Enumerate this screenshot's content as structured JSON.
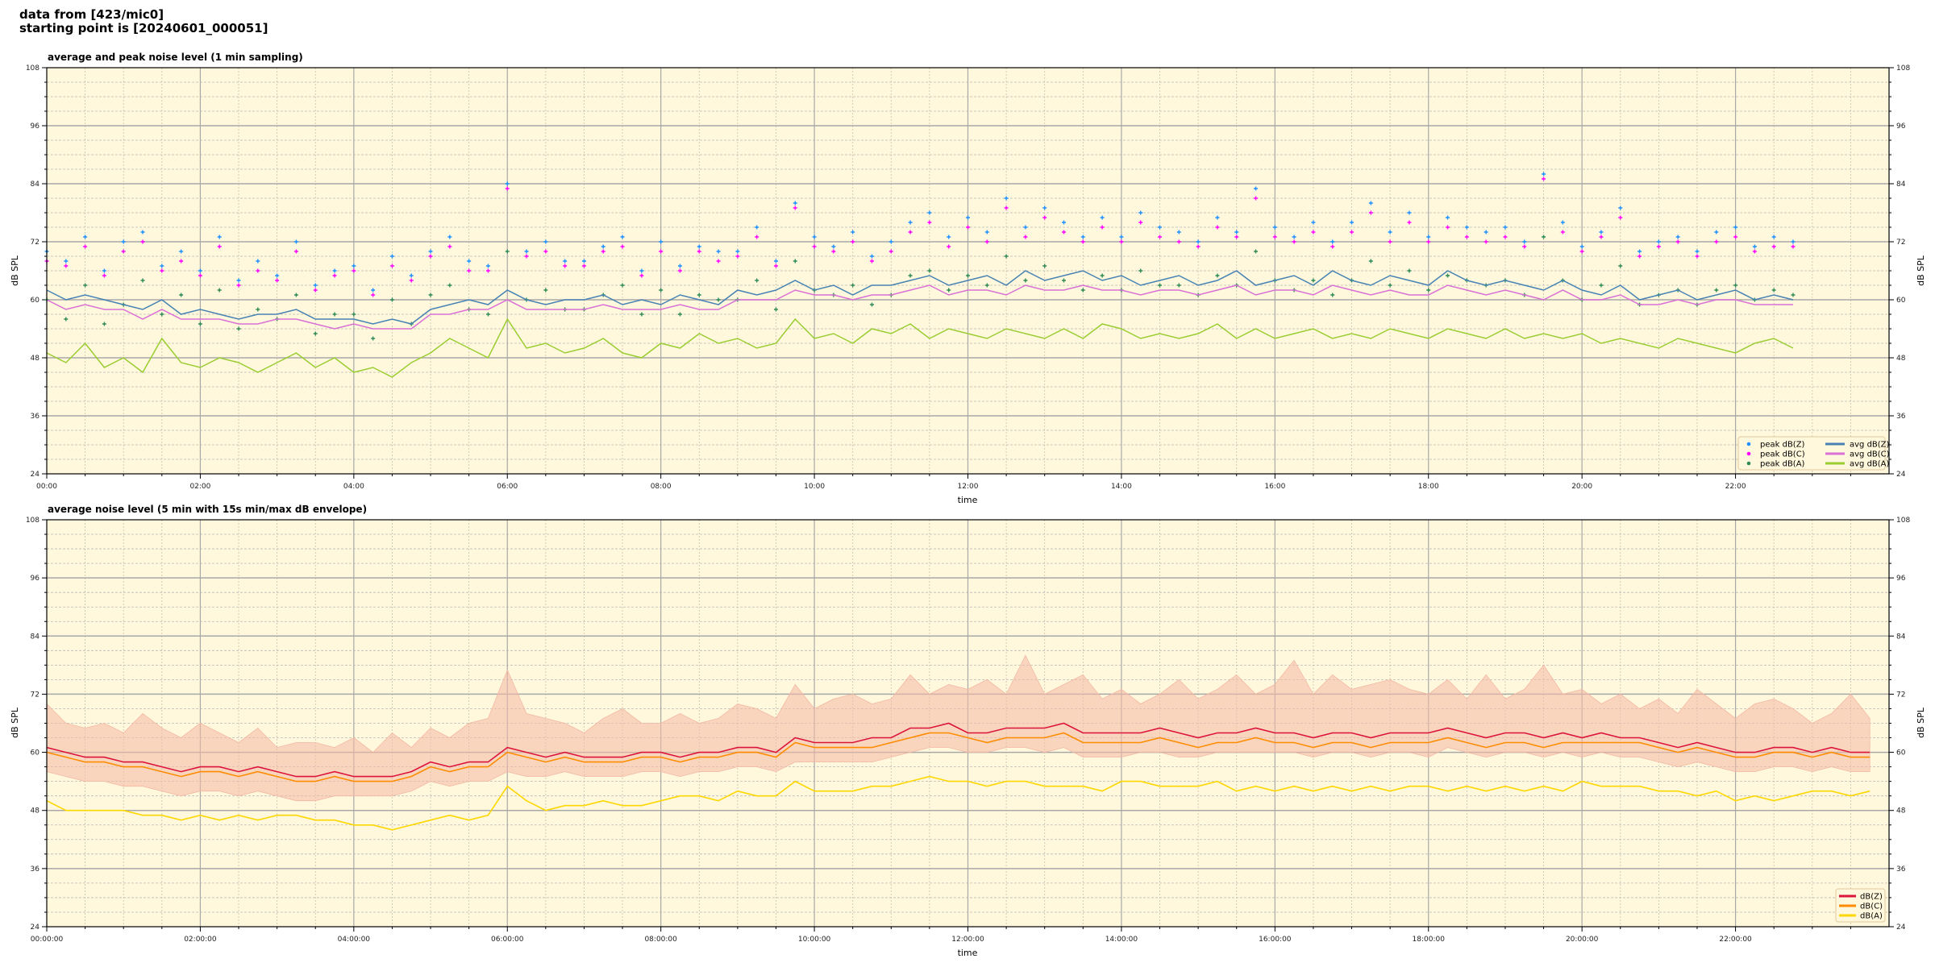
{
  "header": {
    "line1": "data from [423/mic0]",
    "line2": "starting point is [20240601_000051]"
  },
  "colors": {
    "plot_background": "#fff8dc",
    "avg_z": "#4682b4",
    "avg_c": "#da70d6",
    "avg_a": "#9acd32",
    "peak_z": "#1e90ff",
    "peak_c": "#ff00ff",
    "peak_a": "#2e8b57",
    "db_z": "#dc143c",
    "db_c": "#ff8c00",
    "db_a": "#ffd700",
    "envelope": "#f4b8a4"
  },
  "chart_data": [
    {
      "type": "line",
      "title": "average and peak noise level (1 min sampling)",
      "xlabel": "time",
      "ylabel": "dB SPL",
      "ylim": [
        24,
        108
      ],
      "yticks": [
        "24",
        "36",
        "48",
        "60",
        "72",
        "84",
        "96",
        "108"
      ],
      "xticks": [
        "00:00",
        "02:00",
        "04:00",
        "06:00",
        "08:00",
        "10:00",
        "12:00",
        "14:00",
        "16:00",
        "18:00",
        "20:00",
        "22:00"
      ],
      "grid": true,
      "legend": "lower-right",
      "legend_entries": [
        "peak dB(Z)",
        "peak dB(C)",
        "peak dB(A)",
        "avg dB(Z)",
        "avg dB(C)",
        "avg dB(A)"
      ],
      "series": [
        {
          "name": "peak dB(Z)",
          "kind": "scatter",
          "values": [
            70,
            68,
            73,
            66,
            72,
            74,
            67,
            70,
            66,
            73,
            64,
            68,
            65,
            72,
            63,
            66,
            67,
            62,
            69,
            65,
            70,
            73,
            68,
            67,
            84,
            70,
            72,
            68,
            68,
            71,
            73,
            66,
            72,
            67,
            71,
            70,
            70,
            75,
            68,
            80,
            73,
            71,
            74,
            69,
            72,
            76,
            78,
            73,
            77,
            74,
            81,
            75,
            79,
            76,
            73,
            77,
            73,
            78,
            75,
            74,
            72,
            77,
            74,
            83,
            75,
            73,
            76,
            72,
            76,
            80,
            74,
            78,
            73,
            77,
            75,
            74,
            75,
            72,
            86,
            76,
            71,
            74,
            79,
            70,
            72,
            73,
            70,
            74,
            75,
            71,
            73,
            72
          ]
        },
        {
          "name": "peak dB(C)",
          "kind": "scatter",
          "values": [
            68,
            67,
            71,
            65,
            70,
            72,
            66,
            68,
            65,
            71,
            63,
            66,
            64,
            70,
            62,
            65,
            66,
            61,
            67,
            64,
            69,
            71,
            66,
            66,
            83,
            69,
            70,
            67,
            67,
            70,
            71,
            65,
            70,
            66,
            70,
            68,
            69,
            73,
            67,
            79,
            71,
            70,
            72,
            68,
            70,
            74,
            76,
            71,
            75,
            72,
            79,
            73,
            77,
            74,
            72,
            75,
            72,
            76,
            73,
            72,
            71,
            75,
            73,
            81,
            73,
            72,
            74,
            71,
            74,
            78,
            72,
            76,
            72,
            75,
            73,
            72,
            73,
            71,
            85,
            74,
            70,
            73,
            77,
            69,
            71,
            72,
            69,
            72,
            73,
            70,
            71,
            71
          ]
        },
        {
          "name": "peak dB(A)",
          "kind": "scatter",
          "values": [
            60,
            56,
            63,
            55,
            59,
            64,
            57,
            61,
            55,
            62,
            54,
            58,
            56,
            61,
            53,
            57,
            57,
            52,
            60,
            55,
            61,
            63,
            58,
            57,
            70,
            60,
            62,
            58,
            58,
            61,
            63,
            57,
            62,
            57,
            61,
            60,
            60,
            64,
            58,
            68,
            62,
            61,
            63,
            59,
            61,
            65,
            66,
            62,
            65,
            63,
            69,
            64,
            67,
            64,
            62,
            65,
            62,
            66,
            63,
            63,
            61,
            65,
            63,
            70,
            64,
            62,
            64,
            61,
            64,
            68,
            63,
            66,
            62,
            65,
            64,
            63,
            64,
            61,
            73,
            64,
            60,
            63,
            67,
            59,
            61,
            62,
            59,
            62,
            63,
            60,
            62,
            61
          ]
        },
        {
          "name": "avg dB(Z)",
          "kind": "line",
          "values": [
            62,
            60,
            61,
            60,
            59,
            58,
            60,
            57,
            58,
            57,
            56,
            57,
            57,
            58,
            56,
            56,
            56,
            55,
            56,
            55,
            58,
            59,
            60,
            59,
            62,
            60,
            59,
            60,
            60,
            61,
            59,
            60,
            59,
            61,
            60,
            59,
            62,
            61,
            62,
            64,
            62,
            63,
            61,
            63,
            63,
            64,
            65,
            63,
            64,
            65,
            63,
            66,
            64,
            65,
            66,
            64,
            65,
            63,
            64,
            65,
            63,
            64,
            66,
            63,
            64,
            65,
            63,
            66,
            64,
            63,
            65,
            64,
            63,
            66,
            64,
            63,
            64,
            63,
            62,
            64,
            62,
            61,
            63,
            60,
            61,
            62,
            60,
            61,
            62,
            60,
            61,
            60
          ]
        },
        {
          "name": "avg dB(C)",
          "kind": "line",
          "values": [
            60,
            58,
            59,
            58,
            58,
            56,
            58,
            56,
            56,
            56,
            55,
            55,
            56,
            56,
            55,
            54,
            55,
            54,
            54,
            54,
            57,
            57,
            58,
            58,
            60,
            58,
            58,
            58,
            58,
            59,
            58,
            58,
            58,
            59,
            58,
            58,
            60,
            60,
            60,
            62,
            61,
            61,
            60,
            61,
            61,
            62,
            63,
            61,
            62,
            62,
            61,
            63,
            62,
            62,
            63,
            62,
            62,
            61,
            62,
            62,
            61,
            62,
            63,
            61,
            62,
            62,
            61,
            63,
            62,
            61,
            62,
            61,
            61,
            63,
            62,
            61,
            62,
            61,
            60,
            62,
            60,
            60,
            61,
            59,
            59,
            60,
            59,
            60,
            60,
            59,
            59,
            59
          ]
        },
        {
          "name": "avg dB(A)",
          "kind": "line",
          "values": [
            49,
            47,
            51,
            46,
            48,
            45,
            52,
            47,
            46,
            48,
            47,
            45,
            47,
            49,
            46,
            48,
            45,
            46,
            44,
            47,
            49,
            52,
            50,
            48,
            56,
            50,
            51,
            49,
            50,
            52,
            49,
            48,
            51,
            50,
            53,
            51,
            52,
            50,
            51,
            56,
            52,
            53,
            51,
            54,
            53,
            55,
            52,
            54,
            53,
            52,
            54,
            53,
            52,
            54,
            52,
            55,
            54,
            52,
            53,
            52,
            53,
            55,
            52,
            54,
            52,
            53,
            54,
            52,
            53,
            52,
            54,
            53,
            52,
            54,
            53,
            52,
            54,
            52,
            53,
            52,
            53,
            51,
            52,
            51,
            50,
            52,
            51,
            50,
            49,
            51,
            52,
            50
          ]
        }
      ]
    },
    {
      "type": "line",
      "title": "average noise level (5 min with 15s min/max dB envelope)",
      "xlabel": "time",
      "ylabel": "dB SPL",
      "ylim": [
        24,
        108
      ],
      "yticks": [
        "24",
        "36",
        "48",
        "60",
        "72",
        "84",
        "96",
        "108"
      ],
      "xticks": [
        "00:00:00",
        "02:00:00",
        "04:00:00",
        "06:00:00",
        "08:00:00",
        "10:00:00",
        "12:00:00",
        "14:00:00",
        "16:00:00",
        "18:00:00",
        "20:00:00",
        "22:00:00"
      ],
      "grid": true,
      "legend": "lower-right",
      "legend_entries": [
        "dB(Z)",
        "dB(C)",
        "dB(A)"
      ],
      "envelope": {
        "max": [
          70,
          66,
          65,
          66,
          64,
          68,
          65,
          63,
          66,
          64,
          62,
          65,
          61,
          62,
          62,
          61,
          63,
          60,
          64,
          61,
          65,
          63,
          66,
          67,
          77,
          68,
          67,
          66,
          64,
          67,
          69,
          66,
          66,
          68,
          66,
          67,
          70,
          69,
          67,
          74,
          69,
          71,
          72,
          70,
          71,
          76,
          72,
          74,
          73,
          75,
          72,
          80,
          72,
          74,
          76,
          71,
          73,
          70,
          72,
          75,
          71,
          73,
          76,
          72,
          74,
          79,
          72,
          76,
          73,
          74,
          75,
          73,
          72,
          75,
          71,
          76,
          71,
          73,
          78,
          72,
          73,
          70,
          72,
          69,
          71,
          68,
          73,
          70,
          67,
          70,
          71,
          69,
          66,
          68,
          72,
          67
        ],
        "min": [
          56,
          55,
          54,
          54,
          53,
          53,
          52,
          51,
          52,
          52,
          51,
          52,
          51,
          50,
          50,
          51,
          51,
          51,
          51,
          52,
          54,
          53,
          54,
          54,
          56,
          55,
          55,
          56,
          55,
          55,
          55,
          56,
          56,
          55,
          56,
          56,
          57,
          57,
          56,
          58,
          58,
          58,
          58,
          58,
          59,
          60,
          61,
          61,
          60,
          60,
          61,
          61,
          60,
          61,
          59,
          59,
          59,
          60,
          60,
          59,
          59,
          60,
          60,
          60,
          60,
          60,
          59,
          60,
          60,
          59,
          60,
          60,
          59,
          61,
          60,
          59,
          60,
          60,
          59,
          60,
          59,
          60,
          59,
          59,
          58,
          57,
          58,
          57,
          56,
          56,
          57,
          57,
          56,
          57,
          56,
          56
        ]
      },
      "series": [
        {
          "name": "dB(Z)",
          "values": [
            61,
            60,
            59,
            59,
            58,
            58,
            57,
            56,
            57,
            57,
            56,
            57,
            56,
            55,
            55,
            56,
            55,
            55,
            55,
            56,
            58,
            57,
            58,
            58,
            61,
            60,
            59,
            60,
            59,
            59,
            59,
            60,
            60,
            59,
            60,
            60,
            61,
            61,
            60,
            63,
            62,
            62,
            62,
            63,
            63,
            65,
            65,
            66,
            64,
            64,
            65,
            65,
            65,
            66,
            64,
            64,
            64,
            64,
            65,
            64,
            63,
            64,
            64,
            65,
            64,
            64,
            63,
            64,
            64,
            63,
            64,
            64,
            64,
            65,
            64,
            63,
            64,
            64,
            63,
            64,
            63,
            64,
            63,
            63,
            62,
            61,
            62,
            61,
            60,
            60,
            61,
            61,
            60,
            61,
            60,
            60
          ]
        },
        {
          "name": "dB(C)",
          "values": [
            60,
            59,
            58,
            58,
            57,
            57,
            56,
            55,
            56,
            56,
            55,
            56,
            55,
            54,
            54,
            55,
            54,
            54,
            54,
            55,
            57,
            56,
            57,
            57,
            60,
            59,
            58,
            59,
            58,
            58,
            58,
            59,
            59,
            58,
            59,
            59,
            60,
            60,
            59,
            62,
            61,
            61,
            61,
            61,
            62,
            63,
            64,
            64,
            63,
            62,
            63,
            63,
            63,
            64,
            62,
            62,
            62,
            62,
            63,
            62,
            61,
            62,
            62,
            63,
            62,
            62,
            61,
            62,
            62,
            61,
            62,
            62,
            62,
            63,
            62,
            61,
            62,
            62,
            61,
            62,
            62,
            62,
            62,
            62,
            61,
            60,
            61,
            60,
            59,
            59,
            60,
            60,
            59,
            60,
            59,
            59
          ]
        },
        {
          "name": "dB(A)",
          "values": [
            50,
            48,
            48,
            48,
            48,
            47,
            47,
            46,
            47,
            46,
            47,
            46,
            47,
            47,
            46,
            46,
            45,
            45,
            44,
            45,
            46,
            47,
            46,
            47,
            53,
            50,
            48,
            49,
            49,
            50,
            49,
            49,
            50,
            51,
            51,
            50,
            52,
            51,
            51,
            54,
            52,
            52,
            52,
            53,
            53,
            54,
            55,
            54,
            54,
            53,
            54,
            54,
            53,
            53,
            53,
            52,
            54,
            54,
            53,
            53,
            53,
            54,
            52,
            53,
            52,
            53,
            52,
            53,
            52,
            53,
            52,
            53,
            53,
            52,
            53,
            52,
            53,
            52,
            53,
            52,
            54,
            53,
            53,
            53,
            52,
            52,
            51,
            52,
            50,
            51,
            50,
            51,
            52,
            52,
            51,
            52
          ]
        }
      ]
    }
  ]
}
